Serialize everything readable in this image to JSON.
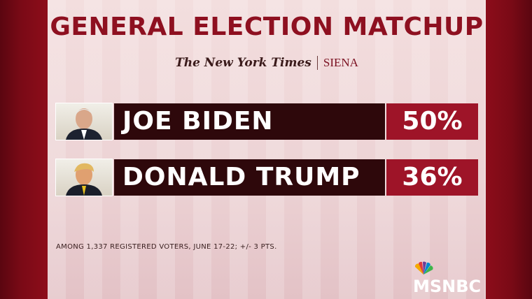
{
  "header": {
    "title": "GENERAL ELECTION MATCHUP",
    "source": "The New York Times",
    "partner": "SIENA"
  },
  "rows": [
    {
      "name": "JOE BIDEN",
      "value": "50%"
    },
    {
      "name": "DONALD TRUMP",
      "value": "36%"
    }
  ],
  "footnote": "AMONG 1,337 REGISTERED VOTERS, JUNE 17-22; +/- 3 PTS.",
  "network": "MSNBC"
}
